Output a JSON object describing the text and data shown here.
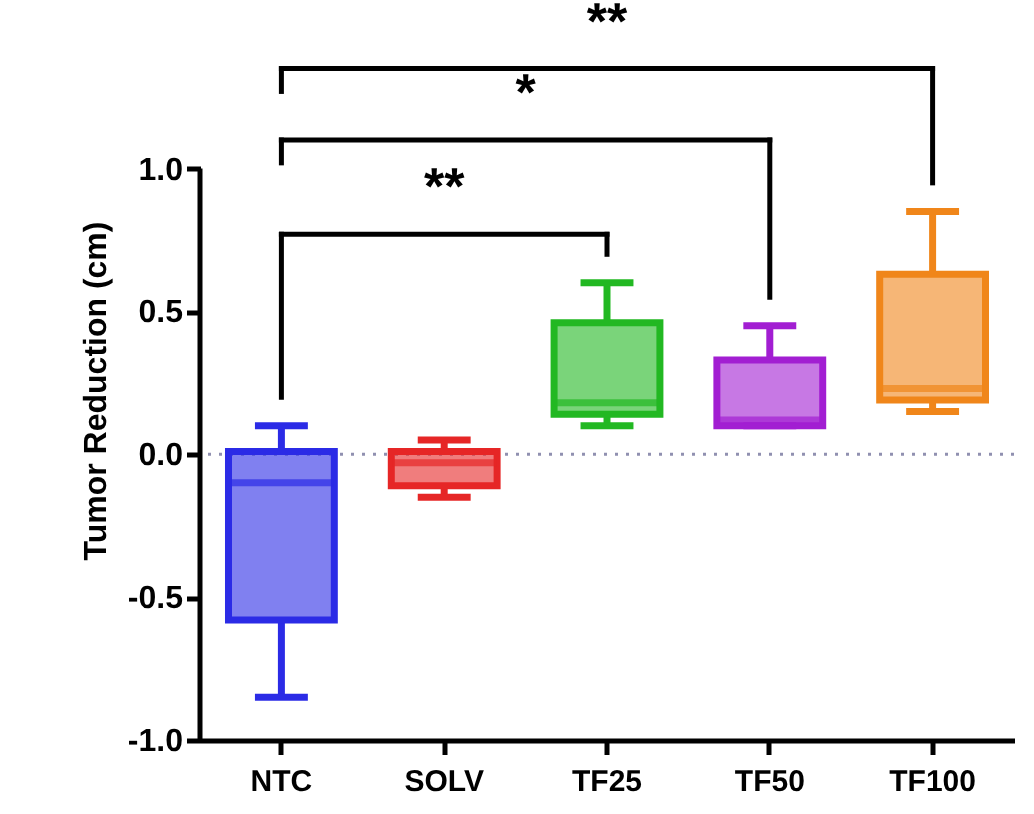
{
  "chart_data": {
    "type": "box",
    "ylabel": "Tumor Reduction (cm)",
    "categories": [
      "NTC",
      "SOLV",
      "TF25",
      "TF50",
      "TF100"
    ],
    "boxes": [
      {
        "low": -0.85,
        "q1": -0.58,
        "median": -0.1,
        "q3": 0.01,
        "high": 0.1
      },
      {
        "low": -0.15,
        "q1": -0.11,
        "median": -0.03,
        "q3": 0.01,
        "high": 0.05
      },
      {
        "low": 0.1,
        "q1": 0.14,
        "median": 0.18,
        "q3": 0.46,
        "high": 0.6
      },
      {
        "low": 0.1,
        "q1": 0.1,
        "median": 0.12,
        "q3": 0.33,
        "high": 0.45
      },
      {
        "low": 0.15,
        "q1": 0.19,
        "median": 0.23,
        "q3": 0.63,
        "high": 0.85
      }
    ],
    "colors": [
      "#2b2be6",
      "#e62626",
      "#22b822",
      "#a21ed2",
      "#f0861a"
    ],
    "ylim": [
      -1,
      1
    ],
    "yticks": [
      {
        "value": -1,
        "label": "-1.0"
      },
      {
        "value": -0.5,
        "label": "-0.5"
      },
      {
        "value": 0,
        "label": "0.0"
      },
      {
        "value": 0.5,
        "label": "0.5"
      },
      {
        "value": 1,
        "label": "1.0"
      }
    ],
    "ref_lines": [
      {
        "axis": "y",
        "value": 0,
        "color": "#9090b0",
        "line_style": "dotted"
      }
    ],
    "annotations": [
      "**",
      "*",
      "**"
    ],
    "grid": false
  }
}
